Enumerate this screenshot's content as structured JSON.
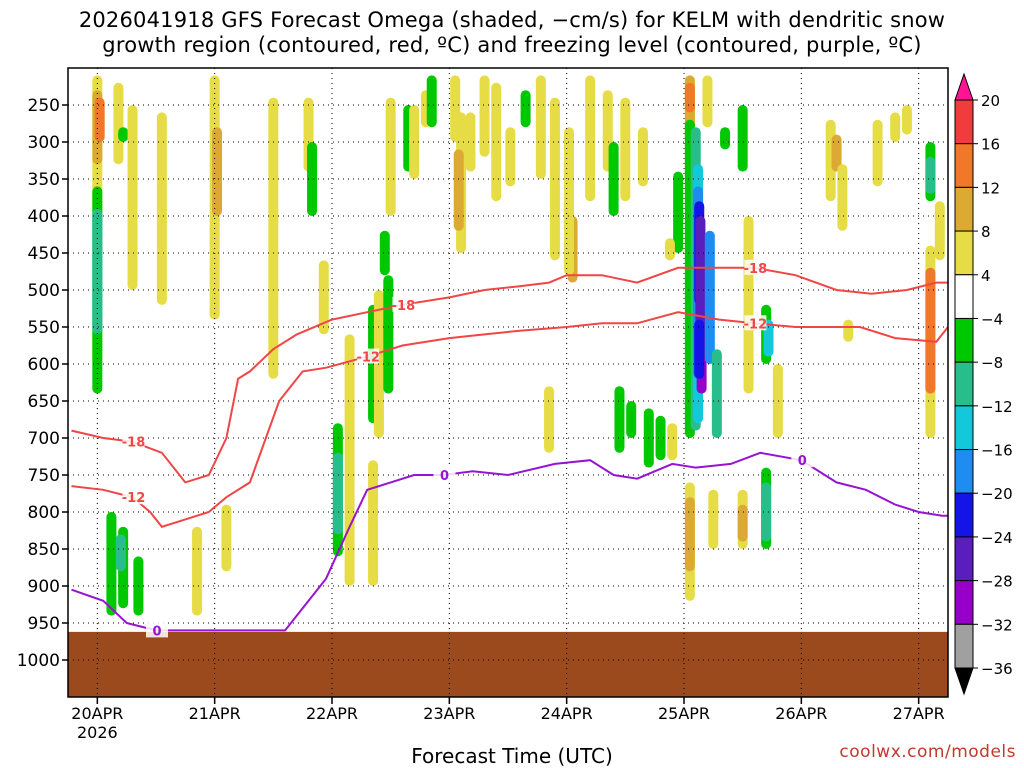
{
  "title_line1": "2026041918 GFS Forecast Omega (shaded, −cm/s) for KELM with dendritic snow",
  "title_line2": "growth region (contoured, red, ºC) and freezing level (contoured, purple, ºC)",
  "credit": "coolwx.com/models",
  "chart_data": {
    "type": "heatmap",
    "title": "2026041918 GFS Forecast Omega (shaded, −cm/s) for KELM with dendritic snow growth region (contoured, red, ºC) and freezing level (contoured, purple, ºC)",
    "xlabel": "Forecast Time (UTC)",
    "ylabel": "",
    "x_range_days": [
      19.75,
      27.25
    ],
    "y_range_hpa": [
      200,
      1050
    ],
    "x_ticks": [
      {
        "day": 20,
        "label": "20APR"
      },
      {
        "day": 21,
        "label": "21APR"
      },
      {
        "day": 22,
        "label": "22APR"
      },
      {
        "day": 23,
        "label": "23APR"
      },
      {
        "day": 24,
        "label": "24APR"
      },
      {
        "day": 25,
        "label": "25APR"
      },
      {
        "day": 26,
        "label": "26APR"
      },
      {
        "day": 27,
        "label": "27APR"
      }
    ],
    "year_label": "2026",
    "y_ticks": [
      250,
      300,
      350,
      400,
      450,
      500,
      550,
      600,
      650,
      700,
      750,
      800,
      850,
      900,
      950,
      1000
    ],
    "colorbar": {
      "labels": [
        "20",
        "16",
        "12",
        "8",
        "4",
        "−4",
        "−8",
        "−12",
        "−16",
        "−20",
        "−24",
        "−28",
        "−32",
        "−36"
      ],
      "colors": [
        "#ff1493",
        "#f03c3c",
        "#f07828",
        "#dcaa32",
        "#e6dc46",
        "#ffffff",
        "#00c800",
        "#28be8c",
        "#14c8dc",
        "#1e8cf0",
        "#1414e6",
        "#5a1ebe",
        "#9600c8",
        "#a0a0a0",
        "#000000"
      ]
    },
    "ground_color": "#9b4a1e",
    "shading_patches": [
      {
        "day": 20.0,
        "p1": 210,
        "p2": 600,
        "c": "#e6dc46"
      },
      {
        "day": 20.0,
        "p1": 230,
        "p2": 330,
        "c": "#dcaa32"
      },
      {
        "day": 20.02,
        "p1": 240,
        "p2": 300,
        "c": "#f07828"
      },
      {
        "day": 20.0,
        "p1": 360,
        "p2": 640,
        "c": "#00c800"
      },
      {
        "day": 20.0,
        "p1": 390,
        "p2": 560,
        "c": "#28be8c"
      },
      {
        "day": 20.18,
        "p1": 220,
        "p2": 330,
        "c": "#e6dc46"
      },
      {
        "day": 20.22,
        "p1": 280,
        "p2": 300,
        "c": "#00c800"
      },
      {
        "day": 20.3,
        "p1": 250,
        "p2": 500,
        "c": "#e6dc46"
      },
      {
        "day": 20.55,
        "p1": 260,
        "p2": 520,
        "c": "#e6dc46"
      },
      {
        "day": 20.12,
        "p1": 800,
        "p2": 940,
        "c": "#00c800"
      },
      {
        "day": 20.22,
        "p1": 820,
        "p2": 930,
        "c": "#00c800"
      },
      {
        "day": 20.2,
        "p1": 830,
        "p2": 880,
        "c": "#28be8c"
      },
      {
        "day": 20.35,
        "p1": 860,
        "p2": 940,
        "c": "#00c800"
      },
      {
        "day": 21.0,
        "p1": 210,
        "p2": 540,
        "c": "#e6dc46"
      },
      {
        "day": 21.02,
        "p1": 280,
        "p2": 400,
        "c": "#dcaa32"
      },
      {
        "day": 20.85,
        "p1": 820,
        "p2": 940,
        "c": "#e6dc46"
      },
      {
        "day": 21.1,
        "p1": 790,
        "p2": 880,
        "c": "#e6dc46"
      },
      {
        "day": 21.5,
        "p1": 240,
        "p2": 620,
        "c": "#e6dc46"
      },
      {
        "day": 21.8,
        "p1": 240,
        "p2": 340,
        "c": "#e6dc46"
      },
      {
        "day": 21.83,
        "p1": 300,
        "p2": 400,
        "c": "#00c800"
      },
      {
        "day": 21.93,
        "p1": 460,
        "p2": 560,
        "c": "#e6dc46"
      },
      {
        "day": 22.05,
        "p1": 680,
        "p2": 860,
        "c": "#00c800"
      },
      {
        "day": 22.05,
        "p1": 720,
        "p2": 830,
        "c": "#28be8c"
      },
      {
        "day": 22.15,
        "p1": 560,
        "p2": 900,
        "c": "#e6dc46"
      },
      {
        "day": 22.35,
        "p1": 520,
        "p2": 680,
        "c": "#00c800"
      },
      {
        "day": 22.4,
        "p1": 500,
        "p2": 700,
        "c": "#e6dc46"
      },
      {
        "day": 22.48,
        "p1": 480,
        "p2": 640,
        "c": "#00c800"
      },
      {
        "day": 22.35,
        "p1": 730,
        "p2": 900,
        "c": "#e6dc46"
      },
      {
        "day": 22.5,
        "p1": 240,
        "p2": 400,
        "c": "#e6dc46"
      },
      {
        "day": 22.45,
        "p1": 420,
        "p2": 480,
        "c": "#00c800"
      },
      {
        "day": 22.65,
        "p1": 250,
        "p2": 340,
        "c": "#00c800"
      },
      {
        "day": 22.7,
        "p1": 250,
        "p2": 350,
        "c": "#e6dc46"
      },
      {
        "day": 22.8,
        "p1": 230,
        "p2": 280,
        "c": "#e6dc46"
      },
      {
        "day": 23.05,
        "p1": 210,
        "p2": 300,
        "c": "#e6dc46"
      },
      {
        "day": 23.1,
        "p1": 260,
        "p2": 450,
        "c": "#e6dc46"
      },
      {
        "day": 23.08,
        "p1": 310,
        "p2": 420,
        "c": "#dcaa32"
      },
      {
        "day": 23.18,
        "p1": 260,
        "p2": 340,
        "c": "#e6dc46"
      },
      {
        "day": 22.85,
        "p1": 210,
        "p2": 280,
        "c": "#00c800"
      },
      {
        "day": 23.3,
        "p1": 210,
        "p2": 320,
        "c": "#e6dc46"
      },
      {
        "day": 23.4,
        "p1": 220,
        "p2": 380,
        "c": "#e6dc46"
      },
      {
        "day": 23.52,
        "p1": 280,
        "p2": 360,
        "c": "#e6dc46"
      },
      {
        "day": 23.65,
        "p1": 230,
        "p2": 280,
        "c": "#00c800"
      },
      {
        "day": 23.78,
        "p1": 210,
        "p2": 350,
        "c": "#e6dc46"
      },
      {
        "day": 23.9,
        "p1": 240,
        "p2": 460,
        "c": "#e6dc46"
      },
      {
        "day": 24.05,
        "p1": 400,
        "p2": 490,
        "c": "#dcaa32"
      },
      {
        "day": 24.02,
        "p1": 280,
        "p2": 480,
        "c": "#e6dc46"
      },
      {
        "day": 24.2,
        "p1": 210,
        "p2": 380,
        "c": "#e6dc46"
      },
      {
        "day": 24.35,
        "p1": 230,
        "p2": 340,
        "c": "#e6dc46"
      },
      {
        "day": 24.4,
        "p1": 300,
        "p2": 400,
        "c": "#00c800"
      },
      {
        "day": 24.5,
        "p1": 240,
        "p2": 380,
        "c": "#e6dc46"
      },
      {
        "day": 24.65,
        "p1": 280,
        "p2": 360,
        "c": "#e6dc46"
      },
      {
        "day": 23.85,
        "p1": 630,
        "p2": 720,
        "c": "#e6dc46"
      },
      {
        "day": 24.45,
        "p1": 630,
        "p2": 720,
        "c": "#00c800"
      },
      {
        "day": 24.55,
        "p1": 650,
        "p2": 700,
        "c": "#00c800"
      },
      {
        "day": 24.7,
        "p1": 660,
        "p2": 740,
        "c": "#00c800"
      },
      {
        "day": 24.8,
        "p1": 670,
        "p2": 730,
        "c": "#00c800"
      },
      {
        "day": 24.9,
        "p1": 680,
        "p2": 730,
        "c": "#e6dc46"
      },
      {
        "day": 24.95,
        "p1": 340,
        "p2": 450,
        "c": "#00c800"
      },
      {
        "day": 24.88,
        "p1": 430,
        "p2": 460,
        "c": "#e6dc46"
      },
      {
        "day": 25.05,
        "p1": 210,
        "p2": 460,
        "c": "#e6dc46"
      },
      {
        "day": 25.05,
        "p1": 210,
        "p2": 300,
        "c": "#dcaa32"
      },
      {
        "day": 25.05,
        "p1": 220,
        "p2": 260,
        "c": "#f07828"
      },
      {
        "day": 25.2,
        "p1": 210,
        "p2": 280,
        "c": "#e6dc46"
      },
      {
        "day": 25.05,
        "p1": 270,
        "p2": 700,
        "c": "#00c800"
      },
      {
        "day": 25.1,
        "p1": 280,
        "p2": 690,
        "c": "#28be8c"
      },
      {
        "day": 25.12,
        "p1": 330,
        "p2": 680,
        "c": "#14c8dc"
      },
      {
        "day": 25.12,
        "p1": 360,
        "p2": 620,
        "c": "#1e8cf0"
      },
      {
        "day": 25.13,
        "p1": 380,
        "p2": 520,
        "c": "#1414e6"
      },
      {
        "day": 25.14,
        "p1": 400,
        "p2": 600,
        "c": "#5a1ebe"
      },
      {
        "day": 25.15,
        "p1": 590,
        "p2": 640,
        "c": "#9600c8"
      },
      {
        "day": 25.13,
        "p1": 540,
        "p2": 620,
        "c": "#1414e6"
      },
      {
        "day": 25.22,
        "p1": 420,
        "p2": 600,
        "c": "#1e8cf0"
      },
      {
        "day": 25.28,
        "p1": 580,
        "p2": 700,
        "c": "#28be8c"
      },
      {
        "day": 25.35,
        "p1": 280,
        "p2": 310,
        "c": "#00c800"
      },
      {
        "day": 25.5,
        "p1": 250,
        "p2": 340,
        "c": "#00c800"
      },
      {
        "day": 25.05,
        "p1": 760,
        "p2": 920,
        "c": "#e6dc46"
      },
      {
        "day": 25.05,
        "p1": 780,
        "p2": 880,
        "c": "#dcaa32"
      },
      {
        "day": 25.25,
        "p1": 770,
        "p2": 850,
        "c": "#e6dc46"
      },
      {
        "day": 25.5,
        "p1": 770,
        "p2": 850,
        "c": "#e6dc46"
      },
      {
        "day": 25.5,
        "p1": 790,
        "p2": 840,
        "c": "#dcaa32"
      },
      {
        "day": 25.7,
        "p1": 740,
        "p2": 850,
        "c": "#00c800"
      },
      {
        "day": 25.7,
        "p1": 760,
        "p2": 840,
        "c": "#28be8c"
      },
      {
        "day": 25.55,
        "p1": 400,
        "p2": 640,
        "c": "#e6dc46"
      },
      {
        "day": 25.7,
        "p1": 520,
        "p2": 600,
        "c": "#00c800"
      },
      {
        "day": 25.72,
        "p1": 540,
        "p2": 590,
        "c": "#14c8dc"
      },
      {
        "day": 25.8,
        "p1": 600,
        "p2": 700,
        "c": "#e6dc46"
      },
      {
        "day": 26.25,
        "p1": 270,
        "p2": 380,
        "c": "#e6dc46"
      },
      {
        "day": 26.3,
        "p1": 290,
        "p2": 340,
        "c": "#dcaa32"
      },
      {
        "day": 26.35,
        "p1": 330,
        "p2": 420,
        "c": "#e6dc46"
      },
      {
        "day": 26.65,
        "p1": 270,
        "p2": 360,
        "c": "#e6dc46"
      },
      {
        "day": 26.8,
        "p1": 260,
        "p2": 300,
        "c": "#e6dc46"
      },
      {
        "day": 26.9,
        "p1": 250,
        "p2": 290,
        "c": "#e6dc46"
      },
      {
        "day": 27.1,
        "p1": 300,
        "p2": 380,
        "c": "#00c800"
      },
      {
        "day": 27.1,
        "p1": 320,
        "p2": 370,
        "c": "#28be8c"
      },
      {
        "day": 27.1,
        "p1": 440,
        "p2": 700,
        "c": "#e6dc46"
      },
      {
        "day": 27.1,
        "p1": 470,
        "p2": 640,
        "c": "#f07828"
      },
      {
        "day": 27.18,
        "p1": 380,
        "p2": 460,
        "c": "#e6dc46"
      },
      {
        "day": 26.4,
        "p1": 540,
        "p2": 570,
        "c": "#e6dc46"
      }
    ],
    "series": [
      {
        "name": "-18",
        "color": "#f04646",
        "x": [
          19.78,
          20.05,
          20.3,
          20.55,
          20.75,
          20.95,
          21.1,
          21.2,
          21.3,
          21.5,
          21.7,
          22.0,
          22.3,
          22.6,
          23.0,
          23.3,
          23.6,
          23.85,
          24.0,
          24.3,
          24.6,
          24.95,
          25.3,
          25.6,
          25.95,
          26.3,
          26.6,
          26.9,
          27.15,
          27.25
        ],
        "y": [
          690,
          700,
          705,
          720,
          760,
          750,
          700,
          620,
          610,
          580,
          560,
          540,
          530,
          520,
          510,
          500,
          495,
          490,
          480,
          480,
          490,
          470,
          470,
          470,
          480,
          500,
          505,
          500,
          490,
          490
        ]
      },
      {
        "name": "-12",
        "color": "#f04646",
        "x": [
          19.78,
          20.05,
          20.3,
          20.45,
          20.55,
          20.75,
          20.95,
          21.1,
          21.3,
          21.55,
          21.75,
          21.95,
          22.3,
          22.6,
          23.0,
          23.3,
          23.6,
          24.0,
          24.3,
          24.6,
          24.95,
          25.3,
          25.6,
          25.95,
          26.2,
          26.5,
          26.8,
          27.15,
          27.25
        ],
        "y": [
          765,
          770,
          780,
          800,
          820,
          810,
          800,
          780,
          760,
          650,
          610,
          605,
          590,
          575,
          565,
          560,
          555,
          550,
          545,
          545,
          530,
          540,
          545,
          550,
          550,
          550,
          565,
          570,
          550
        ]
      },
      {
        "name": "0",
        "color": "#9614d2",
        "x": [
          19.78,
          20.05,
          20.25,
          20.5,
          20.8,
          21.1,
          21.35,
          21.6,
          21.95,
          22.15,
          22.3,
          22.5,
          22.7,
          22.95,
          23.2,
          23.5,
          23.9,
          24.2,
          24.4,
          24.6,
          24.9,
          25.1,
          25.4,
          25.65,
          26.0,
          26.3,
          26.55,
          26.8,
          27.0,
          27.2,
          27.25
        ],
        "y": [
          905,
          920,
          950,
          960,
          960,
          960,
          960,
          960,
          890,
          820,
          770,
          760,
          750,
          750,
          745,
          750,
          735,
          730,
          750,
          755,
          735,
          740,
          735,
          720,
          730,
          760,
          770,
          790,
          800,
          805,
          805
        ]
      }
    ]
  }
}
